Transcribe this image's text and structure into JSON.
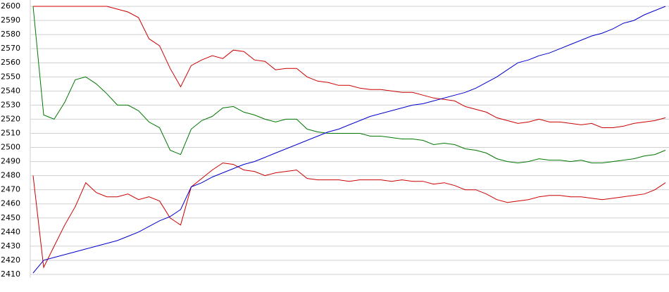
{
  "chart_data": {
    "type": "line",
    "ylim": [
      2410,
      2600
    ],
    "yticks": [
      2410,
      2420,
      2430,
      2440,
      2450,
      2460,
      2470,
      2480,
      2490,
      2500,
      2510,
      2520,
      2530,
      2540,
      2550,
      2560,
      2570,
      2580,
      2590,
      2600
    ],
    "grid": true,
    "series": [
      {
        "color": "#cc0000",
        "values": [
          2600,
          2600,
          2600,
          2600,
          2600,
          2600,
          2600,
          2600,
          2598,
          2596,
          2592,
          2577,
          2572,
          2556,
          2543,
          2558,
          2562,
          2565,
          2563,
          2569,
          2568,
          2562,
          2561,
          2555,
          2556,
          2556,
          2550,
          2547,
          2546,
          2544,
          2544,
          2542,
          2541,
          2541,
          2540,
          2539,
          2539,
          2537,
          2535,
          2534,
          2533,
          2529,
          2527,
          2525,
          2521,
          2519,
          2517,
          2518,
          2520,
          2518,
          2518,
          2517,
          2516,
          2517,
          2514,
          2514,
          2515,
          2517,
          2518,
          2519,
          2521
        ]
      },
      {
        "color": "#007700",
        "values": [
          2600,
          2523,
          2520,
          2532,
          2548,
          2550,
          2545,
          2538,
          2530,
          2530,
          2526,
          2518,
          2514,
          2498,
          2495,
          2513,
          2519,
          2522,
          2528,
          2529,
          2525,
          2523,
          2520,
          2518,
          2520,
          2520,
          2513,
          2511,
          2510,
          2510,
          2510,
          2510,
          2508,
          2508,
          2507,
          2506,
          2506,
          2505,
          2502,
          2503,
          2502,
          2499,
          2498,
          2496,
          2492,
          2490,
          2489,
          2490,
          2492,
          2491,
          2491,
          2490,
          2491,
          2489,
          2489,
          2490,
          2491,
          2492,
          2494,
          2495,
          2498
        ]
      },
      {
        "color": "#cc0000",
        "values": [
          2480,
          2415,
          2430,
          2445,
          2458,
          2475,
          2468,
          2465,
          2465,
          2467,
          2463,
          2465,
          2462,
          2450,
          2445,
          2472,
          2478,
          2484,
          2489,
          2488,
          2484,
          2483,
          2480,
          2482,
          2483,
          2484,
          2478,
          2477,
          2477,
          2477,
          2476,
          2477,
          2477,
          2477,
          2476,
          2477,
          2476,
          2476,
          2474,
          2475,
          2473,
          2470,
          2470,
          2467,
          2463,
          2461,
          2462,
          2463,
          2465,
          2466,
          2466,
          2465,
          2465,
          2464,
          2463,
          2464,
          2465,
          2466,
          2467,
          2470,
          2475
        ]
      },
      {
        "color": "#0000cc",
        "values": [
          2411,
          2420,
          2422,
          2424,
          2426,
          2428,
          2430,
          2432,
          2434,
          2437,
          2440,
          2444,
          2448,
          2451,
          2456,
          2472,
          2475,
          2479,
          2482,
          2485,
          2488,
          2490,
          2493,
          2496,
          2499,
          2502,
          2505,
          2508,
          2511,
          2513,
          2516,
          2519,
          2522,
          2524,
          2526,
          2528,
          2530,
          2531,
          2533,
          2535,
          2537,
          2539,
          2542,
          2546,
          2550,
          2555,
          2560,
          2562,
          2565,
          2567,
          2570,
          2573,
          2576,
          2579,
          2581,
          2584,
          2588,
          2590,
          2594,
          2597,
          2600
        ]
      }
    ]
  }
}
